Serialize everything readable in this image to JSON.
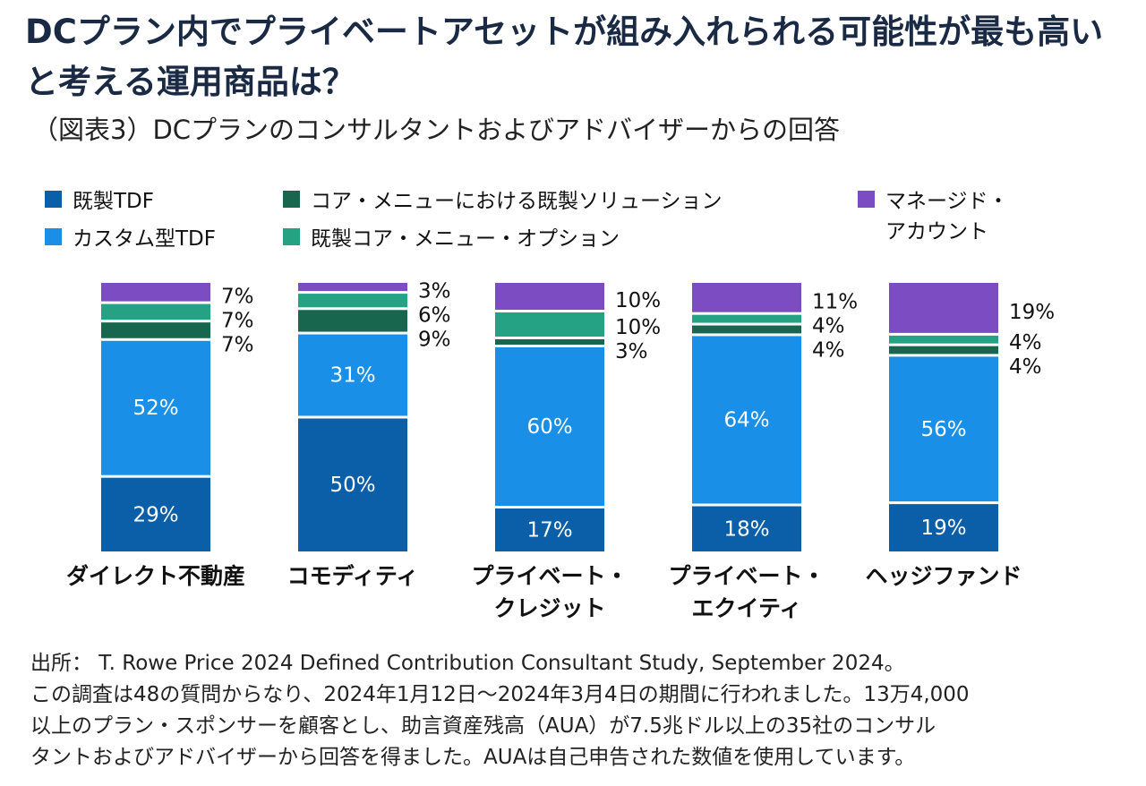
{
  "title": "DCプラン内でプライベートアセットが組み入れられる可能性が最も高いと考える運用商品は？",
  "subtitle": "（図表3）DCプランのコンサルタントおよびアドバイザーからの回答",
  "legend": [
    {
      "label": "既製TDF",
      "color": "#0b5ea8"
    },
    {
      "label": "カスタム型TDF",
      "color": "#1a8fe8"
    },
    {
      "label": "コア・メニューにおける既製ソリューション",
      "color": "#18664e"
    },
    {
      "label": "既製コア・メニュー・オプション",
      "color": "#24a283"
    },
    {
      "label": "マネージド・\nアカウント",
      "color": "#7b4cc2"
    }
  ],
  "chart_data": {
    "type": "bar",
    "stacked": true,
    "categories": [
      "ダイレクト不動産",
      "コモディティ",
      "プライベート・\nクレジット",
      "プライベート・\nエクイティ",
      "ヘッジファンド"
    ],
    "series": [
      {
        "name": "既製TDF",
        "color": "#0b5ea8",
        "values": [
          29,
          50,
          17,
          18,
          19
        ]
      },
      {
        "name": "カスタム型TDF",
        "color": "#1a8fe8",
        "values": [
          52,
          31,
          60,
          64,
          56
        ]
      },
      {
        "name": "コア・メニューにおける既製ソリューション",
        "color": "#18664e",
        "values": [
          7,
          9,
          3,
          4,
          4
        ]
      },
      {
        "name": "既製コア・メニュー・オプション",
        "color": "#24a283",
        "values": [
          7,
          6,
          10,
          4,
          4
        ]
      },
      {
        "name": "マネージド・アカウント",
        "color": "#7b4cc2",
        "values": [
          7,
          3,
          10,
          11,
          19
        ]
      }
    ],
    "ylim": [
      0,
      100
    ],
    "grid": false,
    "legend_position": "top"
  },
  "source": [
    "出所： T. Rowe Price 2024 Defined Contribution Consultant Study, September 2024。",
    "この調査は48の質問からなり、2024年1月12日～2024年3月4日の期間に行われました。13万4,000",
    "以上のプラン・スポンサーを顧客とし、助言資産残高（AUA）が7.5兆ドル以上の35社のコンサル",
    "タントおよびアドバイザーから回答を得ました。AUAは自己申告された数値を使用しています。"
  ]
}
